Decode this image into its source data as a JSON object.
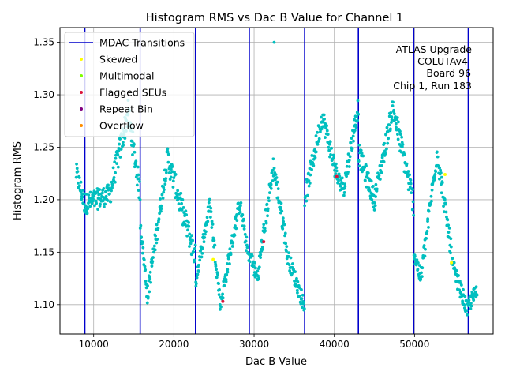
{
  "chart_data": {
    "type": "scatter",
    "title": "Histogram RMS vs Dac B Value for Channel 1",
    "xlabel": "Dac B Value",
    "ylabel": "Histogram RMS",
    "xlim": [
      5800,
      59800
    ],
    "ylim": [
      1.072,
      1.364
    ],
    "grid": true,
    "x_ticks": [
      10000,
      20000,
      30000,
      40000,
      50000
    ],
    "x_tick_labels": [
      "10000",
      "20000",
      "30000",
      "40000",
      "50000"
    ],
    "y_ticks": [
      1.1,
      1.15,
      1.2,
      1.25,
      1.3,
      1.35
    ],
    "y_tick_labels": [
      "1.10",
      "1.15",
      "1.20",
      "1.25",
      "1.30",
      "1.35"
    ],
    "legend_position": "top-left",
    "legend": [
      {
        "label": "MDAC Transitions",
        "kind": "line",
        "color": "#0000cc"
      },
      {
        "label": "Skewed",
        "kind": "marker",
        "color": "#ffff00"
      },
      {
        "label": "Multimodal",
        "kind": "marker",
        "color": "#7fff00"
      },
      {
        "label": "Flagged SEUs",
        "kind": "marker",
        "color": "#dc143c"
      },
      {
        "label": "Repeat Bin",
        "kind": "marker",
        "color": "#800080"
      },
      {
        "label": "Overflow",
        "kind": "marker",
        "color": "#ff8c00"
      }
    ],
    "annotation_lines": [
      "ATLAS Upgrade",
      "COLUTAv4",
      "Board 96",
      "Chip 1, Run 183"
    ],
    "mdac_transitions": [
      8900,
      15800,
      22700,
      29400,
      36300,
      43000,
      49900,
      56700
    ],
    "main_series_color": "#00bfbf",
    "segments": [
      {
        "x_start": 7800,
        "x_end": 8900,
        "y_start": 1.226,
        "y_end": 1.196,
        "spread": 0.01
      },
      {
        "x_start": 8900,
        "x_end": 12000,
        "y_start": 1.196,
        "y_end": 1.205,
        "spread": 0.01
      },
      {
        "x_start": 12000,
        "x_end": 14300,
        "y_start": 1.205,
        "y_end": 1.283,
        "spread": 0.012
      },
      {
        "x_start": 14300,
        "x_end": 15800,
        "y_start": 1.283,
        "y_end": 1.205,
        "spread": 0.012
      },
      {
        "x_start": 15800,
        "x_end": 16700,
        "y_start": 1.18,
        "y_end": 1.108,
        "spread": 0.008
      },
      {
        "x_start": 16700,
        "x_end": 19200,
        "y_start": 1.108,
        "y_end": 1.24,
        "spread": 0.01
      },
      {
        "x_start": 19200,
        "x_end": 22700,
        "y_start": 1.24,
        "y_end": 1.145,
        "spread": 0.012
      },
      {
        "x_start": 22700,
        "x_end": 24500,
        "y_start": 1.122,
        "y_end": 1.196,
        "spread": 0.008
      },
      {
        "x_start": 24500,
        "x_end": 25800,
        "y_start": 1.196,
        "y_end": 1.1,
        "spread": 0.008
      },
      {
        "x_start": 25800,
        "x_end": 28200,
        "y_start": 1.1,
        "y_end": 1.198,
        "spread": 0.008
      },
      {
        "x_start": 28200,
        "x_end": 29400,
        "y_start": 1.198,
        "y_end": 1.14,
        "spread": 0.008
      },
      {
        "x_start": 29400,
        "x_end": 30400,
        "y_start": 1.15,
        "y_end": 1.125,
        "spread": 0.008
      },
      {
        "x_start": 30400,
        "x_end": 32400,
        "y_start": 1.125,
        "y_end": 1.232,
        "spread": 0.01
      },
      {
        "x_start": 32400,
        "x_end": 34000,
        "y_start": 1.232,
        "y_end": 1.16,
        "spread": 0.01
      },
      {
        "x_start": 34000,
        "x_end": 36300,
        "y_start": 1.15,
        "y_end": 1.098,
        "spread": 0.008
      },
      {
        "x_start": 36300,
        "x_end": 38500,
        "y_start": 1.2,
        "y_end": 1.28,
        "spread": 0.01
      },
      {
        "x_start": 38500,
        "x_end": 40400,
        "y_start": 1.28,
        "y_end": 1.22,
        "spread": 0.01
      },
      {
        "x_start": 40400,
        "x_end": 41200,
        "y_start": 1.22,
        "y_end": 1.212,
        "spread": 0.008
      },
      {
        "x_start": 41200,
        "x_end": 43000,
        "y_start": 1.212,
        "y_end": 1.29,
        "spread": 0.01
      },
      {
        "x_start": 43000,
        "x_end": 45000,
        "y_start": 1.245,
        "y_end": 1.2,
        "spread": 0.01
      },
      {
        "x_start": 45000,
        "x_end": 47300,
        "y_start": 1.2,
        "y_end": 1.288,
        "spread": 0.01
      },
      {
        "x_start": 47300,
        "x_end": 49900,
        "y_start": 1.288,
        "y_end": 1.196,
        "spread": 0.012
      },
      {
        "x_start": 49900,
        "x_end": 50800,
        "y_start": 1.15,
        "y_end": 1.125,
        "spread": 0.008
      },
      {
        "x_start": 50800,
        "x_end": 52800,
        "y_start": 1.125,
        "y_end": 1.245,
        "spread": 0.01
      },
      {
        "x_start": 52800,
        "x_end": 54600,
        "y_start": 1.245,
        "y_end": 1.15,
        "spread": 0.01
      },
      {
        "x_start": 54600,
        "x_end": 56700,
        "y_start": 1.14,
        "y_end": 1.092,
        "spread": 0.008
      },
      {
        "x_start": 56700,
        "x_end": 57800,
        "y_start": 1.1,
        "y_end": 1.112,
        "spread": 0.008
      }
    ],
    "outliers": [
      {
        "x": 32500,
        "y": 1.35
      },
      {
        "x": 14300,
        "y": 1.27
      }
    ],
    "special_points": [
      {
        "category": "Skewed",
        "x": 24900,
        "y": 1.143,
        "color": "#ffff00"
      },
      {
        "category": "Skewed",
        "x": 53800,
        "y": 1.224,
        "color": "#ffff00"
      },
      {
        "category": "Skewed",
        "x": 54600,
        "y": 1.14,
        "color": "#ffff00"
      },
      {
        "category": "Flagged SEUs",
        "x": 26100,
        "y": 1.103,
        "color": "#dc143c"
      },
      {
        "category": "Flagged SEUs",
        "x": 31200,
        "y": 1.16,
        "color": "#dc143c"
      },
      {
        "category": "Flagged SEUs",
        "x": 40300,
        "y": 1.222,
        "color": "#dc143c"
      }
    ]
  }
}
